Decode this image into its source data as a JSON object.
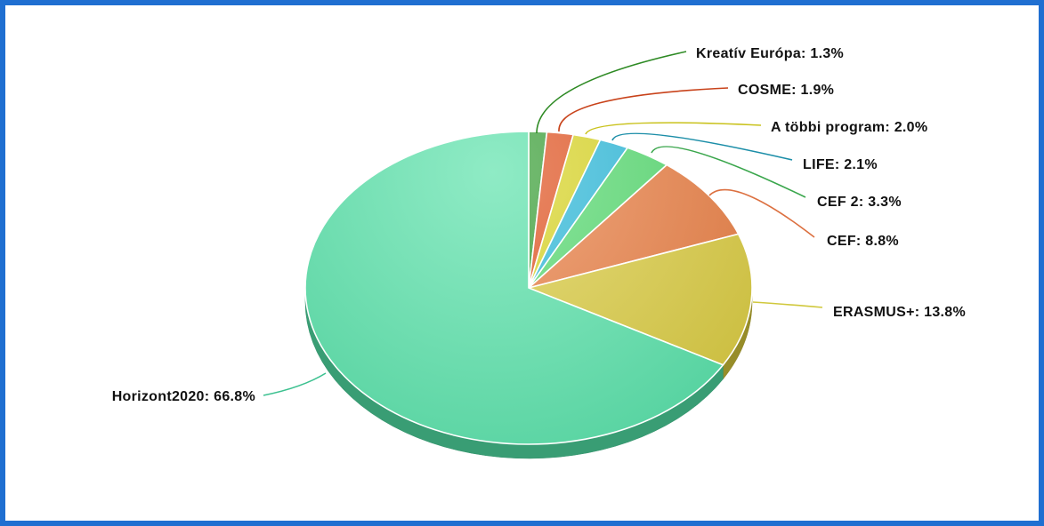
{
  "colors": {
    "border": "#1f6fd1",
    "label_text": "#111111"
  },
  "chart_data": {
    "type": "pie",
    "style": "3d",
    "start_angle_deg": 0,
    "direction": "clockwise",
    "slices": [
      {
        "name": "Kreatív Európa",
        "value": 1.3,
        "label": "Kreatív Európa: 1.3%",
        "color": "#2e9a2a",
        "leader_color": "#2e8a24"
      },
      {
        "name": "COSME",
        "value": 1.9,
        "label": "COSME: 1.9%",
        "color": "#e04b16",
        "leader_color": "#c8421a"
      },
      {
        "name": "A többi program",
        "value": 2.0,
        "label": "A többi program: 2.0%",
        "color": "#d7d31a",
        "leader_color": "#c9c21c"
      },
      {
        "name": "LIFE",
        "value": 2.1,
        "label": "LIFE: 2.1%",
        "color": "#25b6d8",
        "leader_color": "#1c8ea8"
      },
      {
        "name": "CEF 2",
        "value": 3.3,
        "label": "CEF 2: 3.3%",
        "color": "#4fd86a",
        "leader_color": "#3aa64c"
      },
      {
        "name": "CEF",
        "value": 8.8,
        "label": "CEF: 8.8%",
        "color": "#e8793c",
        "leader_color": "#dc7040"
      },
      {
        "name": "ERASMUS+",
        "value": 13.8,
        "label": "ERASMUS+: 13.8%",
        "color": "#d8c93a",
        "leader_color": "#d0c83c"
      },
      {
        "name": "Horizont2020",
        "value": 66.8,
        "label": "Horizont2020: 66.8%",
        "color": "#52e0a6",
        "leader_color": "#3cc190"
      }
    ]
  }
}
